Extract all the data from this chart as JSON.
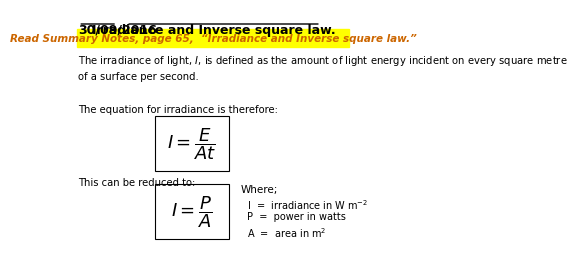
{
  "title_date": "30/09/2016",
  "title_main": "Irradiance and Inverse square law.",
  "banner_text": "Read Summary Notes, page 65,  “Irradiance and Inverse square law.”",
  "banner_bg": "#ffff00",
  "banner_text_color": "#cc6600",
  "body_text1": "The irradiance of light, $I$, is defined as the amount of light energy incident on every square metre\nof a surface per second.",
  "label_eq1": "The equation for irradiance is therefore:",
  "label_eq2": "This can be reduced to:",
  "formula1": "$I = \\dfrac{E}{At}$",
  "formula2": "$I = \\dfrac{P}{A}$",
  "where_title": "Where;",
  "where_line1": "I  =  irradiance in W m$^{-2}$",
  "where_line2": "P  =  power in watts",
  "where_line3": "A  =  area in m$^{2}$",
  "bg_color": "#ffffff",
  "text_color": "#000000",
  "title_underline_color": "#000000"
}
